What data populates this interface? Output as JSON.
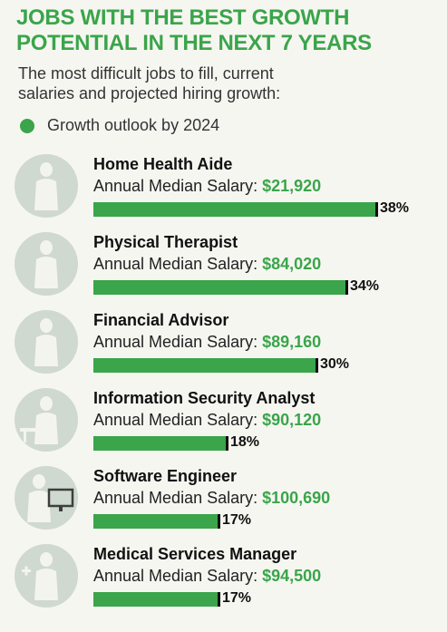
{
  "header": {
    "title_line1": "JOBS WITH THE BEST GROWTH",
    "title_line2": "POTENTIAL IN THE NEXT 7 YEARS",
    "subtitle_line1": "The most difficult jobs to fill, current",
    "subtitle_line2": "salaries and projected hiring growth:"
  },
  "legend": {
    "label": "Growth outlook by 2024",
    "color": "#3aa54a"
  },
  "salary_prefix": "Annual Median Salary:",
  "chart_data": {
    "type": "bar",
    "orientation": "horizontal",
    "categories": [
      "Home Health Aide",
      "Physical Therapist",
      "Financial Advisor",
      "Information Security Analyst",
      "Software Engineer",
      "Medical Services Manager"
    ],
    "values": [
      38,
      34,
      30,
      18,
      17,
      17
    ],
    "value_labels": [
      "38%",
      "34%",
      "30%",
      "18%",
      "17%",
      "17%"
    ],
    "salaries": [
      "$21,920",
      "$84,020",
      "$89,160",
      "$90,120",
      "$100,690",
      "$94,500"
    ],
    "icons": [
      "person-icon",
      "person-icon",
      "person-icon",
      "person-at-desk-icon",
      "person-at-computer-icon",
      "medical-person-icon"
    ],
    "series": [
      {
        "name": "Growth outlook by 2024",
        "values": [
          38,
          34,
          30,
          18,
          17,
          17
        ]
      }
    ],
    "xlim": [
      0,
      38
    ]
  }
}
